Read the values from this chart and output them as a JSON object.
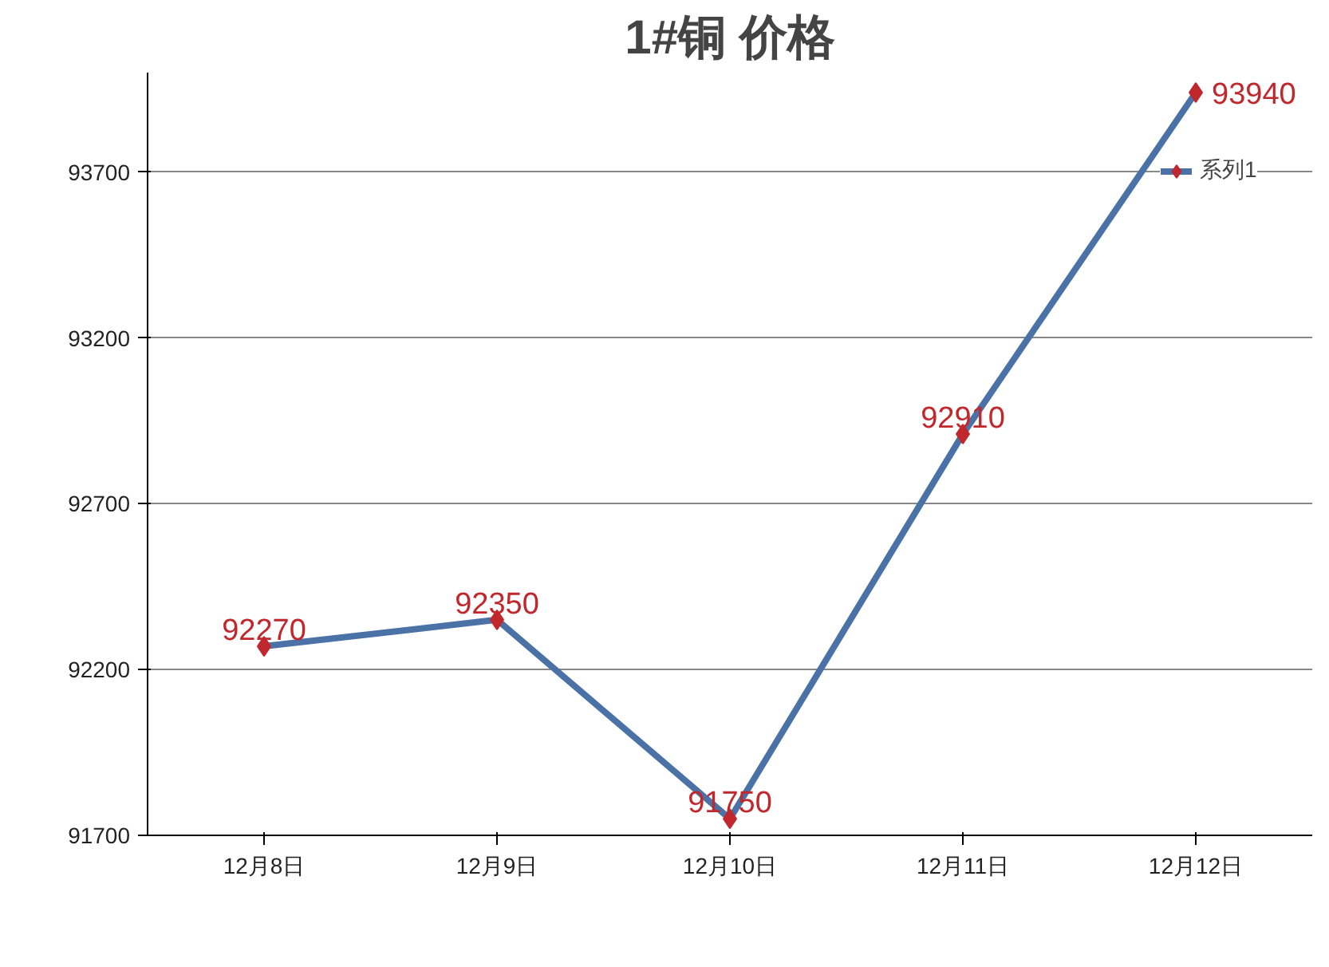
{
  "chart_data": {
    "type": "line",
    "title": "1#铜 价格",
    "categories": [
      "12月8日",
      "12月9日",
      "12月10日",
      "12月11日",
      "12月12日"
    ],
    "series": [
      {
        "name": "系列1",
        "color": "#4a72a6",
        "colors": [
          "#c0282d",
          "#c0282d",
          "#c0282d",
          "#c0282d",
          "#c0282d"
        ],
        "values": [
          92270,
          92350,
          91750,
          92910,
          93940
        ]
      }
    ],
    "ylim": [
      91700,
      94000
    ],
    "yticks": [
      91700,
      92200,
      92700,
      93200,
      93700
    ],
    "grid": "y",
    "legend": "top right",
    "marker": "diamond",
    "data_labels": true
  }
}
